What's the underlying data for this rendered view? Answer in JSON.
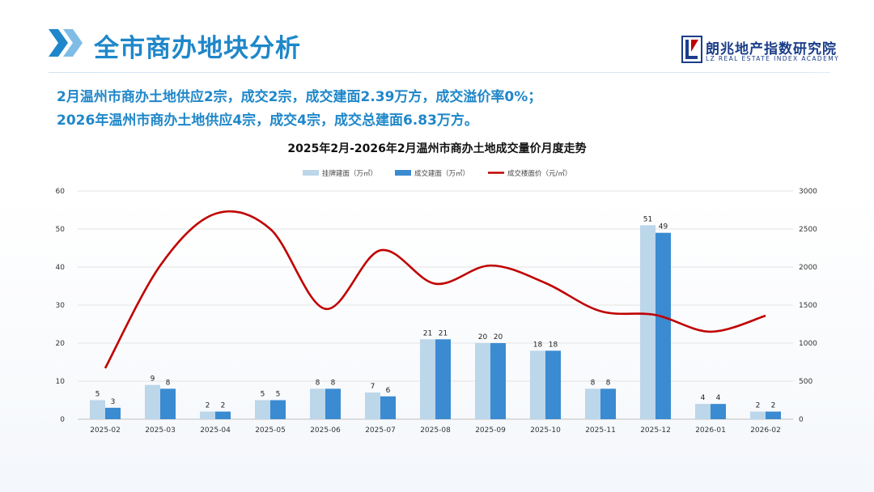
{
  "header": {
    "title": "全市商办地块分析",
    "logo_cn": "朗兆地产指数研究院",
    "logo_en": "LZ REAL ESTATE INDEX ACADEMY"
  },
  "summary": {
    "line1": "2月温州市商办土地供应2宗，成交2宗，成交建面2.39万方，成交溢价率0%；",
    "line2": "2026年温州市商办土地供应4宗，成交4宗，成交总建面6.83万方。"
  },
  "colors": {
    "accent": "#1f87c9",
    "listed": "#bcd6ea",
    "sold": "#3a8bd1",
    "price": "#c00000"
  },
  "chart_data": {
    "type": "bar",
    "title": "2025年2月-2026年2月温州市商办土地成交量价月度走势",
    "categories": [
      "2025-02",
      "2025-03",
      "2025-04",
      "2025-05",
      "2025-06",
      "2025-07",
      "2025-08",
      "2025-09",
      "2025-10",
      "2025-11",
      "2025-12",
      "2026-01",
      "2026-02"
    ],
    "series": [
      {
        "name": "挂牌建面（万㎡）",
        "type": "bar",
        "axis": "left",
        "values": [
          5,
          9,
          2,
          5,
          8,
          7,
          21,
          20,
          18,
          8,
          51,
          4,
          2
        ],
        "labels": [
          "5",
          "9",
          "2",
          "5",
          "8",
          "7",
          "21",
          "20",
          "18",
          "8",
          "51",
          "4",
          "2"
        ]
      },
      {
        "name": "成交建面（万㎡）",
        "type": "bar",
        "axis": "left",
        "values": [
          3,
          8,
          2,
          5,
          8,
          6,
          21,
          20,
          18,
          8,
          49,
          4,
          2
        ],
        "labels": [
          "3",
          "8",
          "2",
          "5",
          "8",
          "6",
          "21",
          "20",
          "18",
          "8",
          "49",
          "4",
          "2"
        ]
      },
      {
        "name": "成交楼面价（元/㎡）",
        "type": "line",
        "axis": "right",
        "values": [
          670,
          2020,
          2700,
          2500,
          1450,
          2220,
          1780,
          2020,
          1790,
          1420,
          1370,
          1150,
          1360
        ]
      }
    ],
    "y_left": {
      "min": 0,
      "max": 60,
      "ticks": [
        "0",
        "10",
        "20",
        "30",
        "40",
        "50",
        "60"
      ]
    },
    "y_right": {
      "min": 0,
      "max": 3000,
      "ticks": [
        "0",
        "500",
        "1000",
        "1500",
        "2000",
        "2500",
        "3000"
      ]
    },
    "grid": true,
    "legend": "top-center"
  }
}
